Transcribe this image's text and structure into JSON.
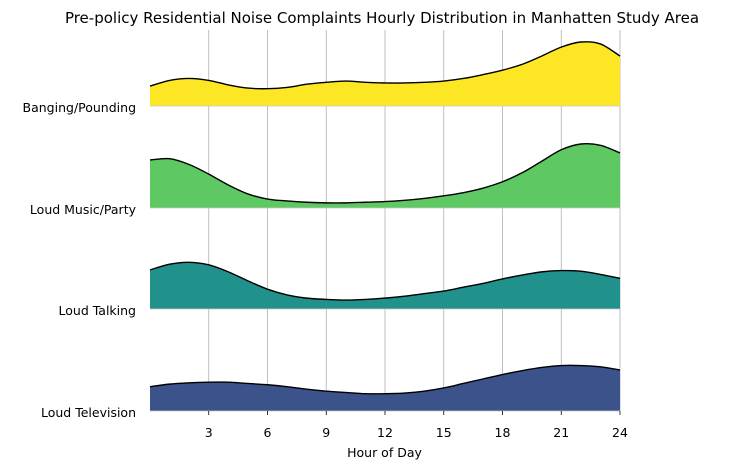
{
  "chart_data": {
    "type": "area",
    "title": "Pre-policy Residential Noise Complaints Hourly Distribution in Manhatten Study Area",
    "xlabel": "Hour of Day",
    "ylabel": "",
    "xlim": [
      0,
      24
    ],
    "xticks": [
      3,
      6,
      9,
      12,
      15,
      18,
      21,
      24
    ],
    "xtick_labels": [
      "3",
      "6",
      "9",
      "12",
      "15",
      "18",
      "21",
      "24"
    ],
    "grid": "vertical",
    "series": [
      {
        "name": "Banging/Pounding",
        "color": "#fde725",
        "x": [
          0,
          1,
          2,
          3,
          4,
          5,
          6,
          7,
          8,
          9,
          10,
          11,
          12,
          13,
          14,
          15,
          16,
          17,
          18,
          19,
          20,
          21,
          22,
          23,
          24
        ],
        "density": [
          0.31,
          0.4,
          0.43,
          0.4,
          0.33,
          0.28,
          0.27,
          0.29,
          0.34,
          0.37,
          0.39,
          0.37,
          0.36,
          0.36,
          0.37,
          0.39,
          0.43,
          0.49,
          0.56,
          0.65,
          0.78,
          0.92,
          1.0,
          0.97,
          0.78
        ]
      },
      {
        "name": "Loud Music/Party",
        "color": "#5ec962",
        "x": [
          0,
          1,
          2,
          3,
          4,
          5,
          6,
          7,
          8,
          9,
          10,
          11,
          12,
          13,
          14,
          15,
          16,
          17,
          18,
          19,
          20,
          21,
          22,
          23,
          24
        ],
        "density": [
          0.75,
          0.77,
          0.68,
          0.53,
          0.36,
          0.22,
          0.14,
          0.11,
          0.09,
          0.08,
          0.08,
          0.09,
          0.1,
          0.12,
          0.15,
          0.19,
          0.24,
          0.31,
          0.41,
          0.55,
          0.73,
          0.91,
          1.0,
          0.98,
          0.86
        ]
      },
      {
        "name": "Loud Talking",
        "color": "#21918c",
        "x": [
          0,
          1,
          2,
          3,
          4,
          5,
          6,
          7,
          8,
          9,
          10,
          11,
          12,
          13,
          14,
          15,
          16,
          17,
          18,
          19,
          20,
          21,
          22,
          23,
          24
        ],
        "density": [
          0.61,
          0.7,
          0.73,
          0.69,
          0.58,
          0.44,
          0.31,
          0.22,
          0.17,
          0.15,
          0.14,
          0.15,
          0.17,
          0.2,
          0.24,
          0.28,
          0.34,
          0.4,
          0.47,
          0.53,
          0.58,
          0.6,
          0.59,
          0.54,
          0.48
        ]
      },
      {
        "name": "Loud Television",
        "color": "#3b528b",
        "x": [
          0,
          1,
          2,
          3,
          4,
          5,
          6,
          7,
          8,
          9,
          10,
          11,
          12,
          13,
          14,
          15,
          16,
          17,
          18,
          19,
          20,
          21,
          22,
          23,
          24
        ],
        "density": [
          0.38,
          0.42,
          0.44,
          0.45,
          0.45,
          0.43,
          0.41,
          0.38,
          0.34,
          0.31,
          0.29,
          0.27,
          0.27,
          0.28,
          0.31,
          0.36,
          0.43,
          0.5,
          0.57,
          0.63,
          0.68,
          0.71,
          0.71,
          0.69,
          0.64
        ]
      }
    ]
  }
}
